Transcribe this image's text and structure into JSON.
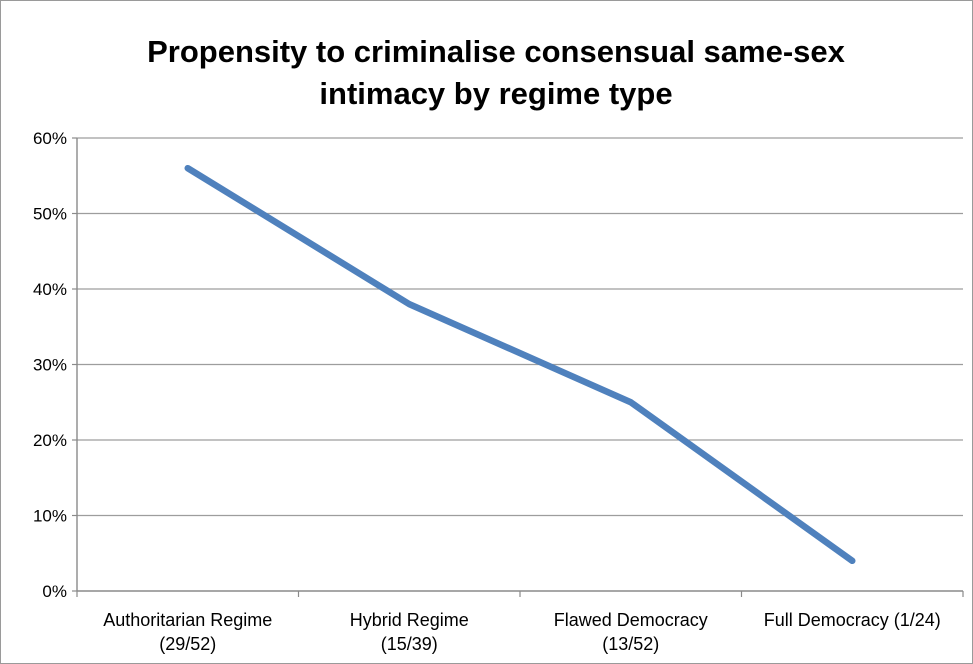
{
  "chart_data": {
    "type": "line",
    "title_lines": [
      "Propensity to criminalise consensual same-sex",
      "intimacy by regime type"
    ],
    "xlabel": "",
    "ylabel": "",
    "categories": [
      [
        "Authoritarian Regime",
        "(29/52)"
      ],
      [
        "Hybrid Regime",
        "(15/39)"
      ],
      [
        "Flawed Democracy",
        "(13/52)"
      ],
      [
        "Full Democracy (1/24)"
      ]
    ],
    "series": [
      {
        "values": [
          56,
          38,
          25,
          4
        ],
        "color": "#4f81bd"
      }
    ],
    "y_unit": "%",
    "ylim": [
      0,
      60
    ],
    "yticks": [
      0,
      10,
      20,
      30,
      40,
      50,
      60
    ],
    "grid": true,
    "legend": "none"
  }
}
